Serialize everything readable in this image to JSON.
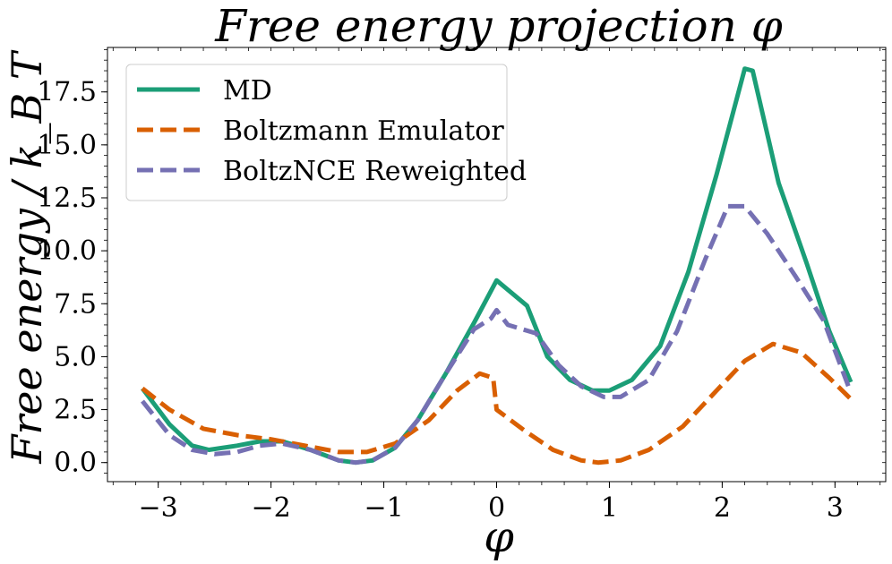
{
  "chart_data": {
    "type": "line",
    "title": "Free energy projection φ",
    "xlabel": "φ",
    "ylabel": "Free energy / k_B T",
    "xlim": [
      -3.45,
      3.45
    ],
    "ylim": [
      -0.9,
      19.6
    ],
    "x_ticks": [
      -3,
      -2,
      -1,
      0,
      1,
      2,
      3
    ],
    "x_tick_labels": [
      "−3",
      "−2",
      "−1",
      "0",
      "1",
      "2",
      "3"
    ],
    "y_ticks": [
      0.0,
      2.5,
      5.0,
      7.5,
      10.0,
      12.5,
      15.0,
      17.5
    ],
    "y_tick_labels": [
      "0.0",
      "2.5",
      "5.0",
      "7.5",
      "10.0",
      "12.5",
      "15.0",
      "17.5"
    ],
    "grid": false,
    "legend_position": "top-left",
    "series": [
      {
        "name": "MD",
        "color": "#1b9e77",
        "dash": "solid",
        "points": [
          [
            -3.14,
            3.5
          ],
          [
            -2.9,
            1.8
          ],
          [
            -2.7,
            0.8
          ],
          [
            -2.55,
            0.6
          ],
          [
            -2.3,
            0.8
          ],
          [
            -2.1,
            1.0
          ],
          [
            -1.9,
            1.0
          ],
          [
            -1.65,
            0.6
          ],
          [
            -1.4,
            0.1
          ],
          [
            -1.25,
            0.0
          ],
          [
            -1.1,
            0.1
          ],
          [
            -0.9,
            0.7
          ],
          [
            -0.7,
            2.0
          ],
          [
            -0.45,
            4.2
          ],
          [
            -0.2,
            6.6
          ],
          [
            0.0,
            8.6
          ],
          [
            0.27,
            7.4
          ],
          [
            0.45,
            5.0
          ],
          [
            0.65,
            3.9
          ],
          [
            0.85,
            3.4
          ],
          [
            1.0,
            3.4
          ],
          [
            1.2,
            3.9
          ],
          [
            1.45,
            5.5
          ],
          [
            1.7,
            9.0
          ],
          [
            1.95,
            13.6
          ],
          [
            2.2,
            18.6
          ],
          [
            2.27,
            18.5
          ],
          [
            2.5,
            13.2
          ],
          [
            2.75,
            9.4
          ],
          [
            2.95,
            6.2
          ],
          [
            3.14,
            3.8
          ]
        ]
      },
      {
        "name": "Boltzmann Emulator",
        "color": "#d95f02",
        "dash": "dashed",
        "points": [
          [
            -3.14,
            3.5
          ],
          [
            -2.9,
            2.5
          ],
          [
            -2.6,
            1.6
          ],
          [
            -2.3,
            1.3
          ],
          [
            -2.0,
            1.1
          ],
          [
            -1.7,
            0.8
          ],
          [
            -1.4,
            0.5
          ],
          [
            -1.15,
            0.5
          ],
          [
            -0.9,
            0.9
          ],
          [
            -0.6,
            2.0
          ],
          [
            -0.35,
            3.4
          ],
          [
            -0.15,
            4.2
          ],
          [
            -0.03,
            4.0
          ],
          [
            0.0,
            2.5
          ],
          [
            0.25,
            1.5
          ],
          [
            0.5,
            0.6
          ],
          [
            0.75,
            0.1
          ],
          [
            0.9,
            0.0
          ],
          [
            1.1,
            0.1
          ],
          [
            1.35,
            0.6
          ],
          [
            1.65,
            1.7
          ],
          [
            1.95,
            3.4
          ],
          [
            2.2,
            4.8
          ],
          [
            2.45,
            5.6
          ],
          [
            2.7,
            5.2
          ],
          [
            2.95,
            4.0
          ],
          [
            3.14,
            3.0
          ]
        ]
      },
      {
        "name": "BoltzNCE Reweighted",
        "color": "#7570b3",
        "dash": "dashed",
        "points": [
          [
            -3.14,
            2.9
          ],
          [
            -2.9,
            1.3
          ],
          [
            -2.7,
            0.6
          ],
          [
            -2.5,
            0.4
          ],
          [
            -2.3,
            0.5
          ],
          [
            -2.1,
            0.8
          ],
          [
            -1.9,
            0.9
          ],
          [
            -1.65,
            0.6
          ],
          [
            -1.4,
            0.1
          ],
          [
            -1.25,
            0.0
          ],
          [
            -1.1,
            0.1
          ],
          [
            -0.9,
            0.7
          ],
          [
            -0.7,
            2.0
          ],
          [
            -0.45,
            4.2
          ],
          [
            -0.2,
            6.3
          ],
          [
            -0.05,
            6.8
          ],
          [
            0.0,
            7.2
          ],
          [
            0.1,
            6.5
          ],
          [
            0.35,
            6.1
          ],
          [
            0.55,
            4.6
          ],
          [
            0.75,
            3.6
          ],
          [
            0.95,
            3.1
          ],
          [
            1.1,
            3.1
          ],
          [
            1.35,
            3.9
          ],
          [
            1.6,
            6.2
          ],
          [
            1.85,
            9.6
          ],
          [
            2.05,
            12.1
          ],
          [
            2.2,
            12.1
          ],
          [
            2.4,
            10.8
          ],
          [
            2.65,
            8.8
          ],
          [
            2.9,
            6.7
          ],
          [
            3.14,
            3.3
          ]
        ]
      }
    ]
  }
}
